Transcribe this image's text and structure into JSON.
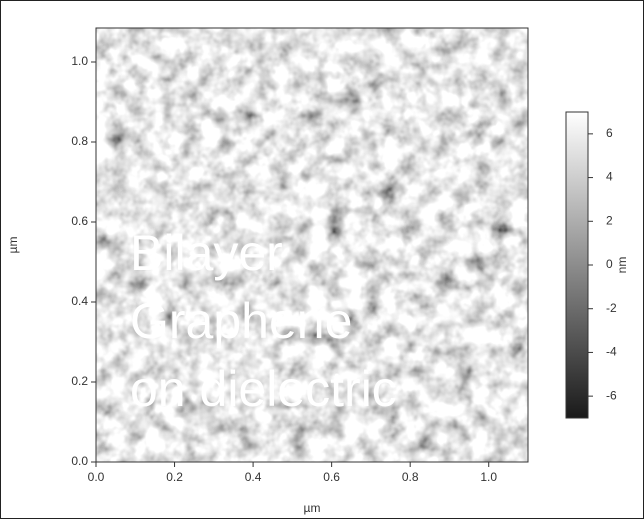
{
  "chart_data": {
    "type": "heatmap",
    "xlabel": "µm",
    "ylabel": "µm",
    "xlim": [
      0,
      1.1
    ],
    "ylim": [
      0,
      1.085
    ],
    "xticks": [
      {
        "value": 0,
        "label": "0.0"
      },
      {
        "value": 0.2,
        "label": "0.2"
      },
      {
        "value": 0.4,
        "label": "0.4"
      },
      {
        "value": 0.6,
        "label": "0.6"
      },
      {
        "value": 0.8,
        "label": "0.8"
      },
      {
        "value": 1,
        "label": "1.0"
      }
    ],
    "yticks": [
      {
        "value": 0,
        "label": "0.0"
      },
      {
        "value": 0.2,
        "label": "0.2"
      },
      {
        "value": 0.4,
        "label": "0.4"
      },
      {
        "value": 0.6,
        "label": "0.6"
      },
      {
        "value": 0.8,
        "label": "0.8"
      },
      {
        "value": 1,
        "label": "1.0"
      }
    ],
    "colorbar": {
      "label": "nm",
      "lim": [
        -7,
        7
      ],
      "ticks": [
        -6,
        -4,
        -2,
        0,
        2,
        4,
        6
      ],
      "colormap": [
        "#1a1a1a",
        "#ffffff"
      ]
    },
    "annotation": [
      "Bilayer",
      "Graphene",
      "on dielectric"
    ]
  }
}
